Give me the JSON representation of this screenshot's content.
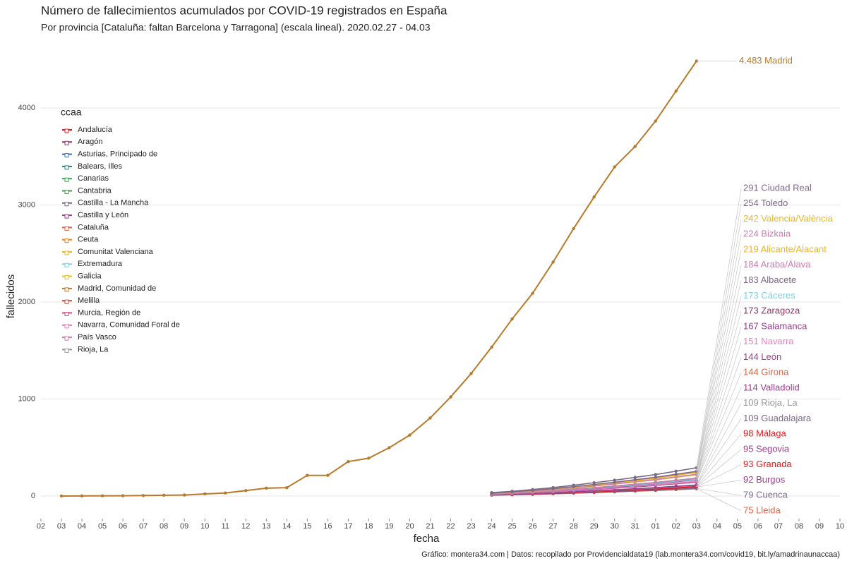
{
  "chart_data": {
    "type": "line",
    "title": "Número de fallecimientos acumulados por COVID-19 registrados en España",
    "subtitle": "Por provincia [Cataluña: faltan Barcelona y Tarragona] (escala lineal). 2020.02.27 - 04.03",
    "x_label": "fecha",
    "y_label": "fallecidos",
    "caption": "Gráfico: montera34.com | Datos: recopilado por Providencialdata19 (lab.montera34.com/covid19, bit.ly/amadrinaunaccaa)",
    "categories": [
      "02",
      "03",
      "04",
      "05",
      "06",
      "07",
      "08",
      "09",
      "10",
      "11",
      "12",
      "13",
      "14",
      "15",
      "16",
      "17",
      "18",
      "19",
      "20",
      "21",
      "22",
      "23",
      "24",
      "25",
      "26",
      "27",
      "28",
      "29",
      "30",
      "31",
      "01",
      "02",
      "03",
      "04",
      "05",
      "06",
      "07",
      "08",
      "09",
      "10"
    ],
    "ylim": [
      -230,
      4500
    ],
    "yticks": [
      0,
      1000,
      2000,
      3000,
      4000
    ],
    "grid": true,
    "legend": {
      "title": "ccaa",
      "items": [
        {
          "name": "Andalucía",
          "color": "#e41a1c"
        },
        {
          "name": "Aragón",
          "color": "#8b3a62"
        },
        {
          "name": "Asturias, Principado de",
          "color": "#3a6fb0"
        },
        {
          "name": "Balears, Illes",
          "color": "#2a7f7f"
        },
        {
          "name": "Canarias",
          "color": "#3aa655"
        },
        {
          "name": "Cantabria",
          "color": "#4c9a4c"
        },
        {
          "name": "Castilla - La Mancha",
          "color": "#7b6888"
        },
        {
          "name": "Castilla y León",
          "color": "#9b3d8c"
        },
        {
          "name": "Cataluña",
          "color": "#e06040"
        },
        {
          "name": "Ceuta",
          "color": "#f08020"
        },
        {
          "name": "Comunitat Valenciana",
          "color": "#f0b422"
        },
        {
          "name": "Extremadura",
          "color": "#7fd0e0"
        },
        {
          "name": "Galicia",
          "color": "#e8c020"
        },
        {
          "name": "Madrid, Comunidad de",
          "color": "#b87a2a"
        },
        {
          "name": "Melilla",
          "color": "#c0503a"
        },
        {
          "name": "Murcia, Región de",
          "color": "#d05080"
        },
        {
          "name": "Navarra, Comunidad Foral de",
          "color": "#e87fbf"
        },
        {
          "name": "País Vasco",
          "color": "#c97fae"
        },
        {
          "name": "Rioja, La",
          "color": "#999999"
        }
      ]
    },
    "series": [
      {
        "label": "4.483 Madrid",
        "color": "#b87a2a",
        "values": [
          null,
          0,
          1,
          2,
          3,
          5,
          8,
          10,
          22,
          31,
          56,
          81,
          86,
          213,
          213,
          355,
          390,
          498,
          628,
          804,
          1021,
          1263,
          1535,
          1825,
          2090,
          2412,
          2757,
          3082,
          3392,
          3603,
          3865,
          4175,
          4483,
          null,
          null,
          null,
          null,
          null,
          null,
          null
        ]
      },
      {
        "label": "291 Ciudad Real",
        "color": "#7b6888",
        "values": [
          null,
          null,
          null,
          null,
          null,
          null,
          null,
          null,
          null,
          null,
          null,
          null,
          null,
          null,
          null,
          null,
          null,
          null,
          null,
          null,
          null,
          null,
          35,
          49,
          67,
          87,
          111,
          137,
          163,
          192,
          221,
          256,
          291,
          null,
          null,
          null,
          null,
          null,
          null,
          null
        ]
      },
      {
        "label": "254 Toledo",
        "color": "#7b6888",
        "values": [
          null,
          null,
          null,
          null,
          null,
          null,
          null,
          null,
          null,
          null,
          null,
          null,
          null,
          null,
          null,
          null,
          null,
          null,
          null,
          null,
          null,
          null,
          30,
          43,
          58,
          76,
          97,
          119,
          142,
          168,
          193,
          224,
          254,
          null,
          null,
          null,
          null,
          null,
          null,
          null
        ]
      },
      {
        "label": "242 Valencia/València",
        "color": "#f0b422",
        "values": [
          null,
          null,
          null,
          null,
          null,
          null,
          null,
          null,
          null,
          null,
          null,
          null,
          null,
          null,
          null,
          null,
          null,
          null,
          null,
          null,
          null,
          null,
          29,
          41,
          56,
          73,
          92,
          114,
          136,
          160,
          184,
          213,
          242,
          null,
          null,
          null,
          null,
          null,
          null,
          null
        ]
      },
      {
        "label": "224 Bizkaia",
        "color": "#c97fae",
        "values": [
          null,
          null,
          null,
          null,
          null,
          null,
          null,
          null,
          null,
          null,
          null,
          null,
          null,
          null,
          null,
          null,
          null,
          null,
          null,
          null,
          null,
          null,
          27,
          38,
          52,
          67,
          85,
          105,
          125,
          148,
          170,
          197,
          224,
          null,
          null,
          null,
          null,
          null,
          null,
          null
        ]
      },
      {
        "label": "219 Alicante/Alacant",
        "color": "#f0b422",
        "values": [
          null,
          null,
          null,
          null,
          null,
          null,
          null,
          null,
          null,
          null,
          null,
          null,
          null,
          null,
          null,
          null,
          null,
          null,
          null,
          null,
          null,
          null,
          26,
          37,
          50,
          66,
          83,
          103,
          123,
          145,
          166,
          193,
          219,
          null,
          null,
          null,
          null,
          null,
          null,
          null
        ]
      },
      {
        "label": "184 Araba/Álava",
        "color": "#c97fae",
        "values": [
          null,
          null,
          null,
          null,
          null,
          null,
          null,
          null,
          null,
          null,
          null,
          null,
          null,
          null,
          null,
          null,
          null,
          null,
          null,
          null,
          null,
          null,
          22,
          31,
          42,
          55,
          70,
          86,
          103,
          121,
          140,
          162,
          184,
          null,
          null,
          null,
          null,
          null,
          null,
          null
        ]
      },
      {
        "label": "183 Albacete",
        "color": "#7b6888",
        "values": [
          null,
          null,
          null,
          null,
          null,
          null,
          null,
          null,
          null,
          null,
          null,
          null,
          null,
          null,
          null,
          null,
          null,
          null,
          null,
          null,
          null,
          null,
          22,
          31,
          42,
          55,
          70,
          86,
          102,
          121,
          139,
          161,
          183,
          null,
          null,
          null,
          null,
          null,
          null,
          null
        ]
      },
      {
        "label": "173 Cáceres",
        "color": "#7fd0e0",
        "values": [
          null,
          null,
          null,
          null,
          null,
          null,
          null,
          null,
          null,
          null,
          null,
          null,
          null,
          null,
          null,
          null,
          null,
          null,
          null,
          null,
          null,
          null,
          21,
          29,
          40,
          52,
          66,
          81,
          97,
          114,
          131,
          152,
          173,
          null,
          null,
          null,
          null,
          null,
          null,
          null
        ]
      },
      {
        "label": "173 Zaragoza",
        "color": "#8b3a62",
        "values": [
          null,
          null,
          null,
          null,
          null,
          null,
          null,
          null,
          null,
          null,
          null,
          null,
          null,
          null,
          null,
          null,
          null,
          null,
          null,
          null,
          null,
          null,
          21,
          29,
          40,
          52,
          66,
          81,
          97,
          114,
          131,
          152,
          173,
          null,
          null,
          null,
          null,
          null,
          null,
          null
        ]
      },
      {
        "label": "167 Salamanca",
        "color": "#9b3d8c",
        "values": [
          null,
          null,
          null,
          null,
          null,
          null,
          null,
          null,
          null,
          null,
          null,
          null,
          null,
          null,
          null,
          null,
          null,
          null,
          null,
          null,
          null,
          null,
          20,
          28,
          38,
          50,
          63,
          78,
          94,
          110,
          127,
          147,
          167,
          null,
          null,
          null,
          null,
          null,
          null,
          null
        ]
      },
      {
        "label": "151 Navarra",
        "color": "#e87fbf",
        "values": [
          null,
          null,
          null,
          null,
          null,
          null,
          null,
          null,
          null,
          null,
          null,
          null,
          null,
          null,
          null,
          null,
          null,
          null,
          null,
          null,
          null,
          null,
          18,
          26,
          35,
          45,
          57,
          71,
          85,
          100,
          115,
          133,
          151,
          null,
          null,
          null,
          null,
          null,
          null,
          null
        ]
      },
      {
        "label": "144 León",
        "color": "#9b3d8c",
        "values": [
          null,
          null,
          null,
          null,
          null,
          null,
          null,
          null,
          null,
          null,
          null,
          null,
          null,
          null,
          null,
          null,
          null,
          null,
          null,
          null,
          null,
          null,
          17,
          24,
          33,
          43,
          55,
          68,
          81,
          95,
          109,
          127,
          144,
          null,
          null,
          null,
          null,
          null,
          null,
          null
        ]
      },
      {
        "label": "144 Girona",
        "color": "#e06040",
        "values": [
          null,
          null,
          null,
          null,
          null,
          null,
          null,
          null,
          null,
          null,
          null,
          null,
          null,
          null,
          null,
          null,
          null,
          null,
          null,
          null,
          null,
          null,
          17,
          24,
          33,
          43,
          55,
          68,
          81,
          95,
          109,
          127,
          144,
          null,
          null,
          null,
          null,
          null,
          null,
          null
        ]
      },
      {
        "label": "114 Valladolid",
        "color": "#9b3d8c",
        "values": [
          null,
          null,
          null,
          null,
          null,
          null,
          null,
          null,
          null,
          null,
          null,
          null,
          null,
          null,
          null,
          null,
          null,
          null,
          null,
          null,
          null,
          null,
          14,
          19,
          26,
          34,
          43,
          54,
          64,
          75,
          87,
          100,
          114,
          null,
          null,
          null,
          null,
          null,
          null,
          null
        ]
      },
      {
        "label": "109 Rioja, La",
        "color": "#999999",
        "values": [
          null,
          null,
          null,
          null,
          null,
          null,
          null,
          null,
          null,
          null,
          null,
          null,
          null,
          null,
          null,
          null,
          null,
          null,
          null,
          null,
          null,
          null,
          13,
          19,
          25,
          33,
          41,
          51,
          61,
          72,
          83,
          96,
          109,
          null,
          null,
          null,
          null,
          null,
          null,
          null
        ]
      },
      {
        "label": "109 Guadalajara",
        "color": "#7b6888",
        "values": [
          null,
          null,
          null,
          null,
          null,
          null,
          null,
          null,
          null,
          null,
          null,
          null,
          null,
          null,
          null,
          null,
          null,
          null,
          null,
          null,
          null,
          null,
          13,
          19,
          25,
          33,
          41,
          51,
          61,
          72,
          83,
          96,
          109,
          null,
          null,
          null,
          null,
          null,
          null,
          null
        ]
      },
      {
        "label": "98 Málaga",
        "color": "#e41a1c",
        "values": [
          null,
          null,
          null,
          null,
          null,
          null,
          null,
          null,
          null,
          null,
          null,
          null,
          null,
          null,
          null,
          null,
          null,
          null,
          null,
          null,
          null,
          null,
          12,
          17,
          23,
          29,
          37,
          46,
          55,
          65,
          74,
          86,
          98,
          null,
          null,
          null,
          null,
          null,
          null,
          null
        ]
      },
      {
        "label": "95 Segovia",
        "color": "#9b3d8c",
        "values": [
          null,
          null,
          null,
          null,
          null,
          null,
          null,
          null,
          null,
          null,
          null,
          null,
          null,
          null,
          null,
          null,
          null,
          null,
          null,
          null,
          null,
          null,
          11,
          16,
          22,
          29,
          36,
          45,
          53,
          63,
          72,
          84,
          95,
          null,
          null,
          null,
          null,
          null,
          null,
          null
        ]
      },
      {
        "label": "93 Granada",
        "color": "#e41a1c",
        "values": [
          null,
          null,
          null,
          null,
          null,
          null,
          null,
          null,
          null,
          null,
          null,
          null,
          null,
          null,
          null,
          null,
          null,
          null,
          null,
          null,
          null,
          null,
          11,
          16,
          21,
          28,
          35,
          44,
          52,
          61,
          71,
          82,
          93,
          null,
          null,
          null,
          null,
          null,
          null,
          null
        ]
      },
      {
        "label": "92 Burgos",
        "color": "#9b3d8c",
        "values": [
          null,
          null,
          null,
          null,
          null,
          null,
          null,
          null,
          null,
          null,
          null,
          null,
          null,
          null,
          null,
          null,
          null,
          null,
          null,
          null,
          null,
          null,
          11,
          16,
          21,
          28,
          35,
          43,
          52,
          61,
          70,
          81,
          92,
          null,
          null,
          null,
          null,
          null,
          null,
          null
        ]
      },
      {
        "label": "79 Cuenca",
        "color": "#7b6888",
        "values": [
          null,
          null,
          null,
          null,
          null,
          null,
          null,
          null,
          null,
          null,
          null,
          null,
          null,
          null,
          null,
          null,
          null,
          null,
          null,
          null,
          null,
          null,
          9,
          13,
          18,
          24,
          30,
          37,
          44,
          52,
          60,
          70,
          79,
          null,
          null,
          null,
          null,
          null,
          null,
          null
        ]
      },
      {
        "label": "75 Lleida",
        "color": "#e06040",
        "values": [
          null,
          null,
          null,
          null,
          null,
          null,
          null,
          null,
          null,
          null,
          null,
          null,
          null,
          null,
          null,
          null,
          null,
          null,
          null,
          null,
          null,
          null,
          9,
          13,
          17,
          23,
          29,
          35,
          42,
          50,
          57,
          66,
          75,
          null,
          null,
          null,
          null,
          null,
          null,
          null
        ]
      }
    ]
  }
}
